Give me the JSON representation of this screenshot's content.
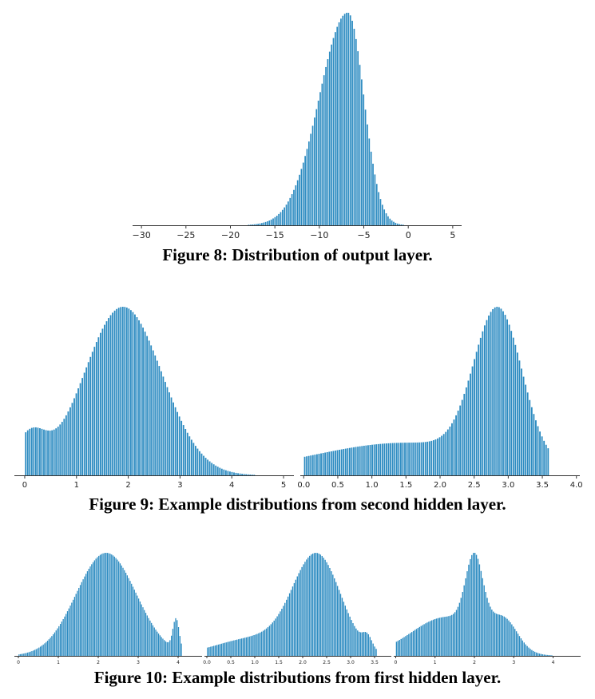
{
  "figures": [
    {
      "caption": "Figure 8: Distribution of output layer."
    },
    {
      "caption": "Figure 9: Example distributions from second hidden layer."
    },
    {
      "caption": "Figure 10: Example distributions from first hidden layer."
    }
  ],
  "colors": {
    "bar": "#2c8bc1",
    "axis": "#333333"
  },
  "chart_data": [
    {
      "type": "bar",
      "xlim": [
        -31,
        6
      ],
      "ticks": [
        -30,
        -25,
        -20,
        -15,
        -10,
        -5,
        0,
        5
      ],
      "tick_labels": [
        "−30",
        "−25",
        "−20",
        "−15",
        "−10",
        "−5",
        "0",
        "5"
      ],
      "shape": {
        "kind": "skewed-peak",
        "peak": -6.8,
        "left_sd": 3.2,
        "right_sd": 1.8,
        "start": -22.5,
        "end": 0.8
      }
    },
    {
      "type": "bar",
      "xlim": [
        -0.2,
        5.2
      ],
      "ticks": [
        0,
        1,
        2,
        3,
        4,
        5
      ],
      "tick_labels": [
        "0",
        "1",
        "2",
        "3",
        "4",
        "5"
      ],
      "shape": {
        "kind": "mixture",
        "start": 0,
        "end": 5,
        "components": [
          {
            "mean": 1.9,
            "sd": 0.75,
            "weight": 1.0
          },
          {
            "mean": 0.1,
            "sd": 0.3,
            "weight": 0.22
          }
        ]
      }
    },
    {
      "type": "bar",
      "xlim": [
        -0.05,
        4.05
      ],
      "ticks": [
        0.0,
        0.5,
        1.0,
        1.5,
        2.0,
        2.5,
        3.0,
        3.5,
        4.0
      ],
      "tick_labels": [
        "0.0",
        "0.5",
        "1.0",
        "1.5",
        "2.0",
        "2.5",
        "3.0",
        "3.5",
        "4.0"
      ],
      "shape": {
        "kind": "mixture",
        "start": 0,
        "end": 3.6,
        "components": [
          {
            "mean": 2.85,
            "sd": 0.35,
            "weight": 1.0
          },
          {
            "mean": 1.5,
            "sd": 1.4,
            "weight": 0.22
          }
        ]
      }
    },
    {
      "type": "bar",
      "xlim": [
        -0.1,
        4.6
      ],
      "ticks": [
        0,
        1,
        2,
        3,
        4
      ],
      "tick_labels": [
        "0",
        "1",
        "2",
        "3",
        "4"
      ],
      "shape": {
        "kind": "mixture",
        "start": 0,
        "end": 4.1,
        "components": [
          {
            "mean": 2.2,
            "sd": 0.75,
            "weight": 1.0
          },
          {
            "mean": 3.95,
            "sd": 0.08,
            "weight": 0.3
          }
        ]
      }
    },
    {
      "type": "bar",
      "xlim": [
        -0.05,
        3.85
      ],
      "ticks": [
        0.0,
        0.5,
        1.0,
        1.5,
        2.0,
        2.5,
        3.0,
        3.5
      ],
      "tick_labels": [
        "0.0",
        "0.5",
        "1.0",
        "1.5",
        "2.0",
        "2.5",
        "3.0",
        "3.5"
      ],
      "shape": {
        "kind": "mixture",
        "start": 0,
        "end": 3.55,
        "components": [
          {
            "mean": 2.3,
            "sd": 0.5,
            "weight": 1.0
          },
          {
            "mean": 1.0,
            "sd": 0.8,
            "weight": 0.18
          },
          {
            "mean": 3.35,
            "sd": 0.1,
            "weight": 0.12
          }
        ]
      }
    },
    {
      "type": "bar",
      "xlim": [
        -0.05,
        4.7
      ],
      "ticks": [
        0,
        1,
        2,
        3,
        4
      ],
      "tick_labels": [
        "0",
        "1",
        "2",
        "3",
        "4"
      ],
      "shape": {
        "kind": "mixture",
        "start": 0,
        "end": 4.3,
        "components": [
          {
            "mean": 2.0,
            "sd": 0.22,
            "weight": 0.7
          },
          {
            "mean": 1.3,
            "sd": 0.9,
            "weight": 0.38
          },
          {
            "mean": 2.75,
            "sd": 0.35,
            "weight": 0.28
          }
        ]
      }
    }
  ]
}
